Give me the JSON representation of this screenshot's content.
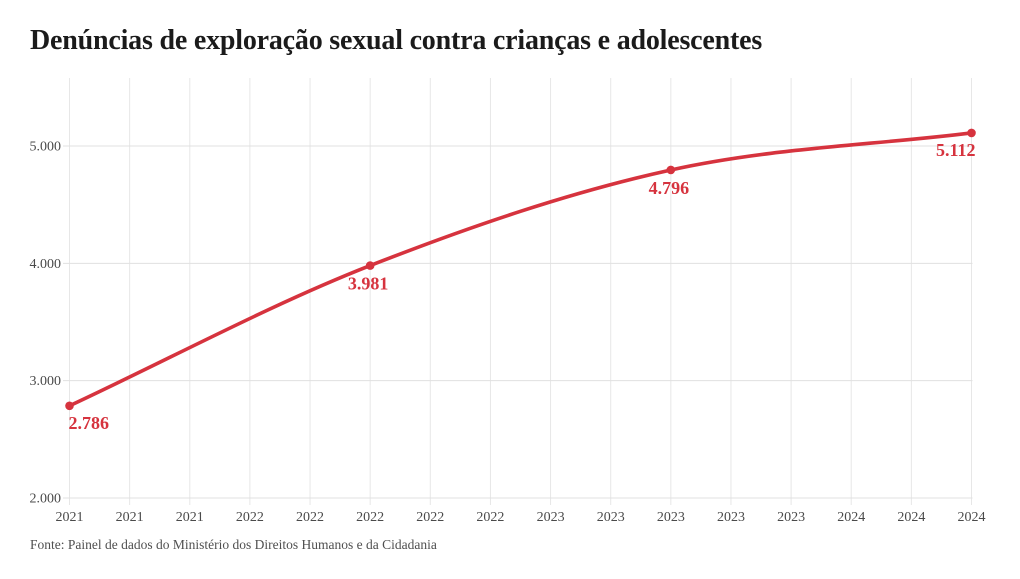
{
  "page": {
    "title": "Denúncias de exploração sexual contra crianças e adolescentes",
    "source": "Fonte: Painel de dados do Ministério dos Direitos Humanos e da Cidadania"
  },
  "chart_data": {
    "type": "line",
    "title": "Denúncias de exploração sexual contra crianças e adolescentes",
    "x": [
      2021,
      2022,
      2023,
      2024
    ],
    "series": [
      {
        "name": "Denúncias",
        "values": [
          2786,
          3981,
          4796,
          5112
        ],
        "point_labels": [
          "2.786",
          "3.981",
          "4.796",
          "5.112"
        ]
      }
    ],
    "xlim": [
      2021,
      2024
    ],
    "ylim": [
      2000,
      5580
    ],
    "y_ticks": [
      2000,
      3000,
      4000,
      5000
    ],
    "y_tick_labels": [
      "2.000",
      "3.000",
      "4.000",
      "5.000"
    ],
    "x_tick_labels": [
      "2021",
      "2021",
      "2021",
      "2022",
      "2022",
      "2022",
      "2022",
      "2022",
      "2023",
      "2023",
      "2023",
      "2023",
      "2023",
      "2024",
      "2024",
      "2024"
    ],
    "grid": true,
    "legend": "none"
  },
  "colors": {
    "background": "#ffffff",
    "title_text": "#1b1b1b",
    "axis_text": "#4a4a4a",
    "grid_line_h": "#e0e0e0",
    "grid_line_v": "#e7e7e7",
    "line_red": "#d6333e",
    "point_label_red": "#d6333e",
    "source_text": "#4f4f4f"
  }
}
